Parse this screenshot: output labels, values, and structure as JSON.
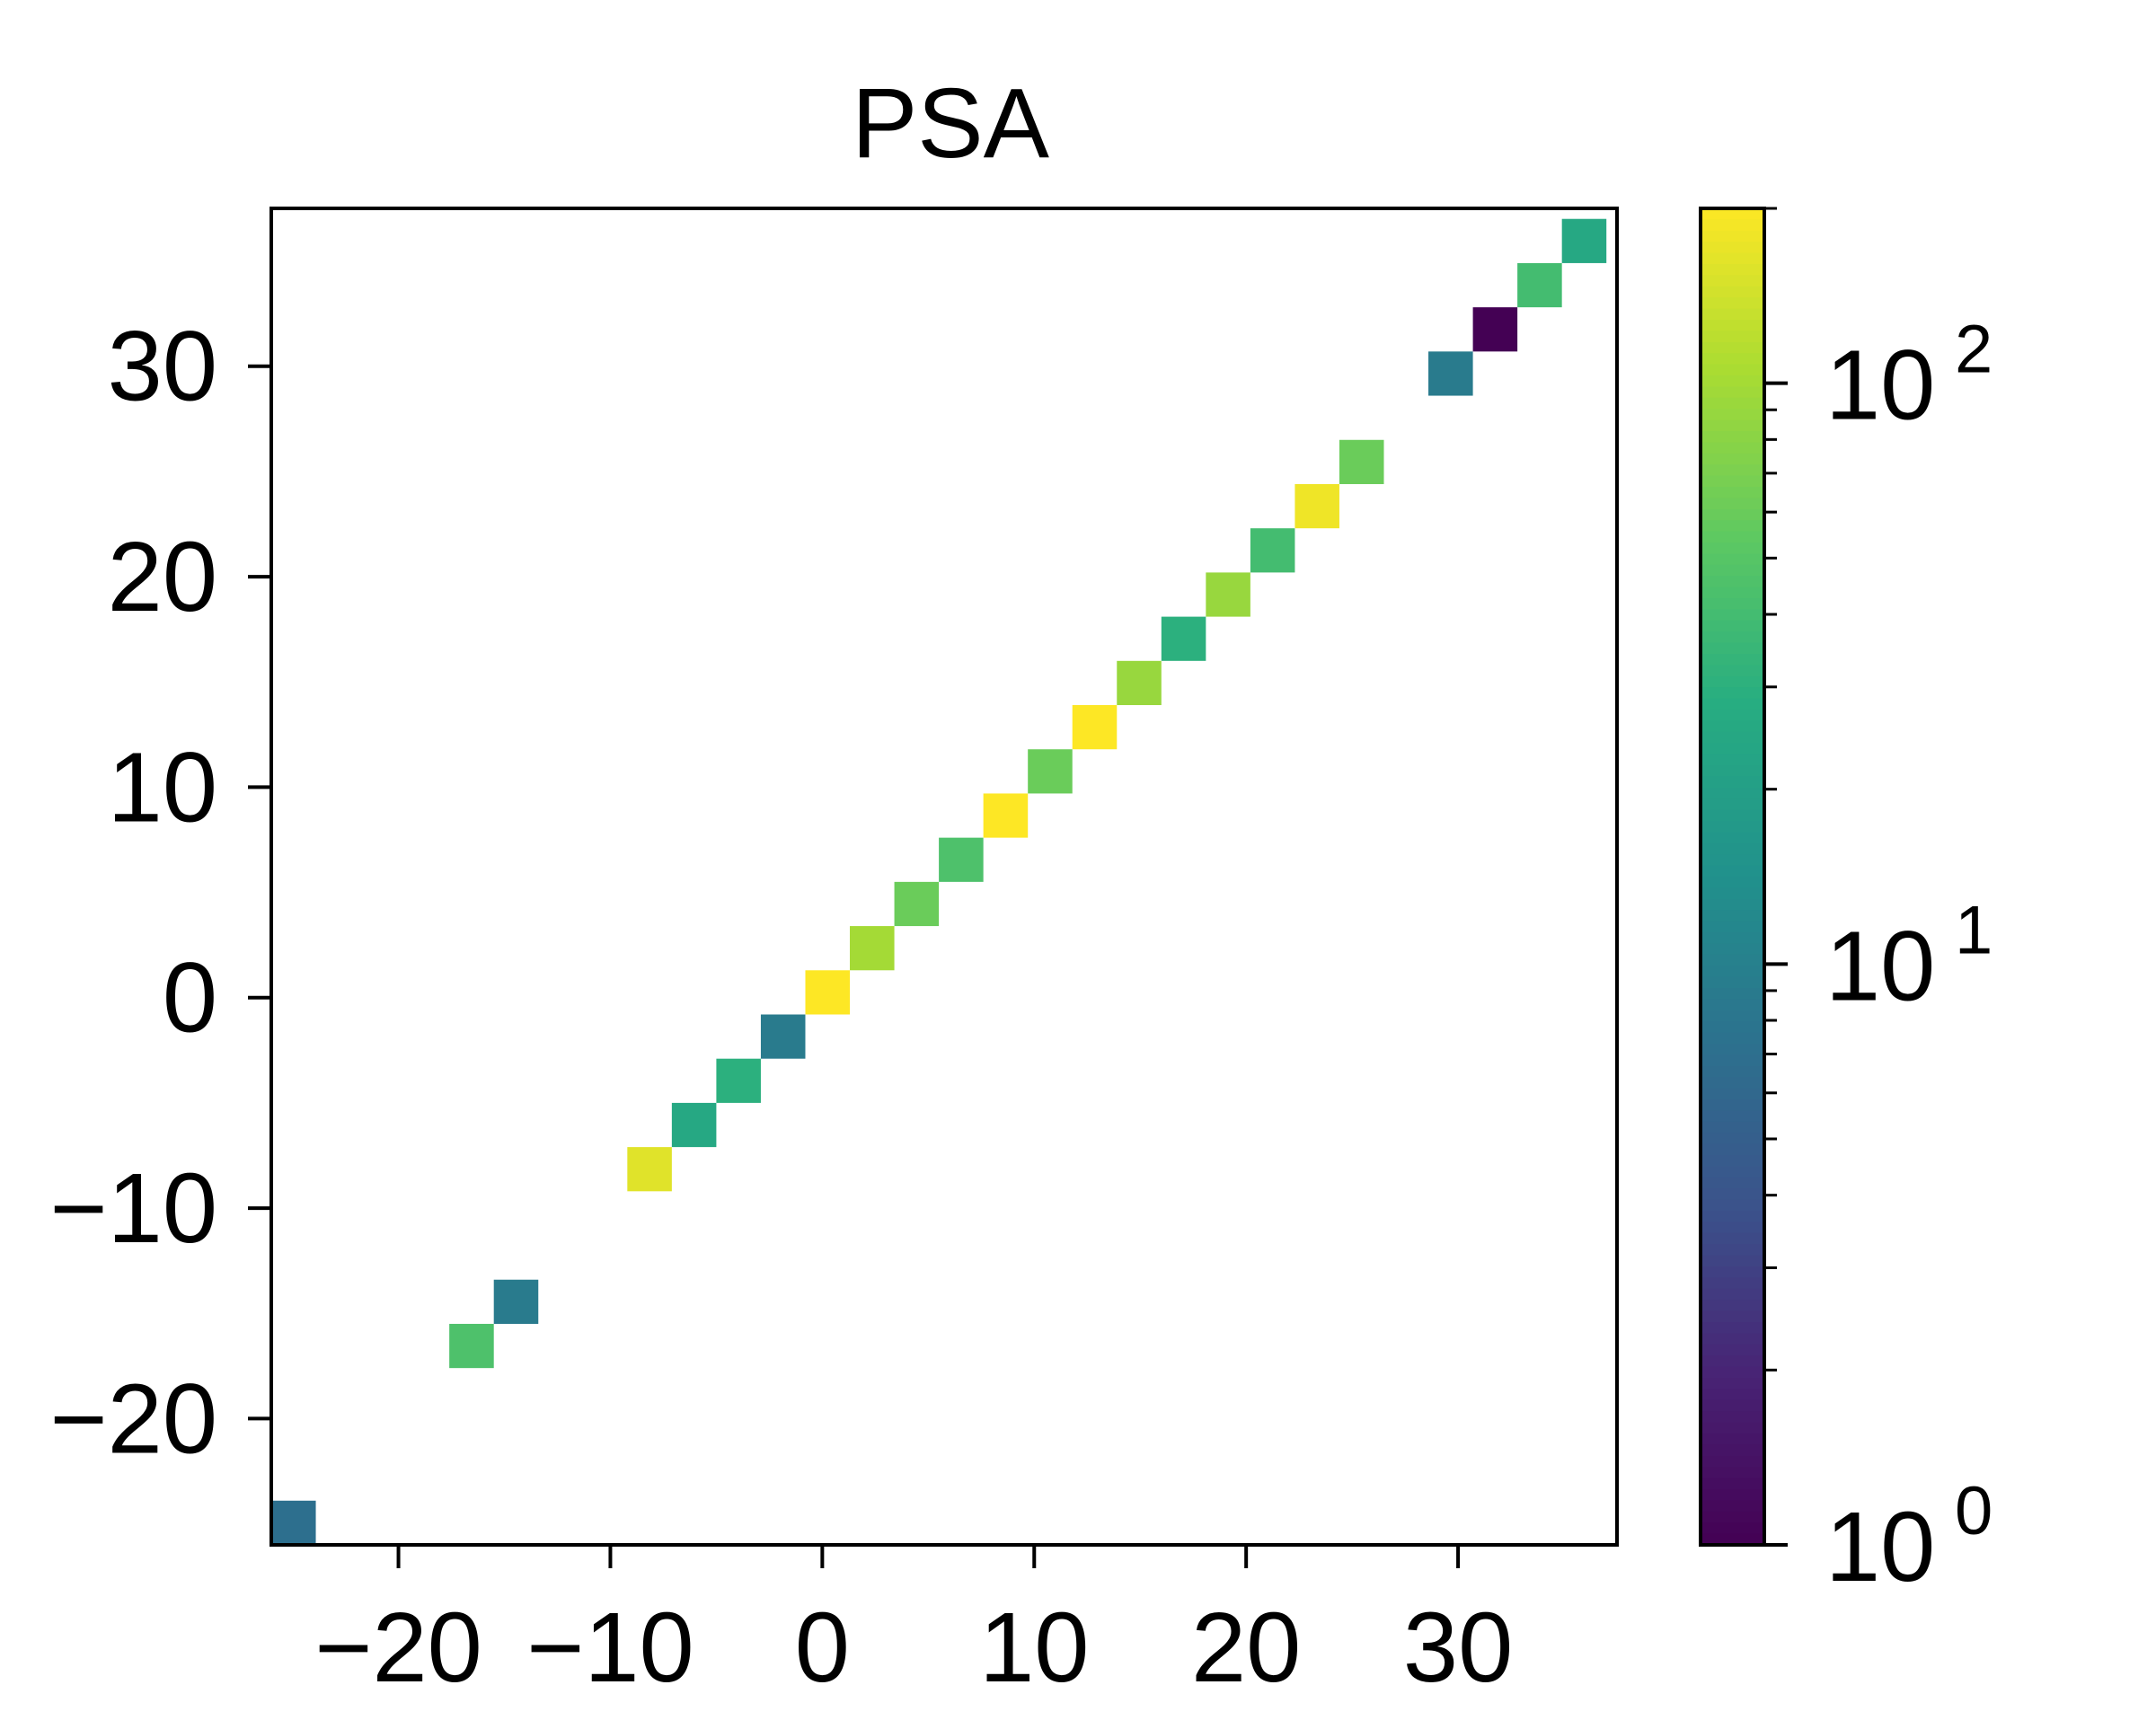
{
  "chart_data": {
    "type": "heatmap",
    "title": "PSA",
    "xlabel": "",
    "ylabel": "",
    "xlim": [
      -26,
      37.5
    ],
    "ylim": [
      -26,
      37.5
    ],
    "x_ticks": [
      -20,
      -10,
      0,
      10,
      20,
      30
    ],
    "y_ticks": [
      -20,
      -10,
      0,
      10,
      20,
      30
    ],
    "x_tick_labels": [
      "−20",
      "−10",
      "0",
      "10",
      "20",
      "30"
    ],
    "y_tick_labels": [
      "−20",
      "−10",
      "0",
      "10",
      "20",
      "30"
    ],
    "grid": false,
    "cell_size": 2.1,
    "cells": [
      {
        "x": -24.95,
        "y": -24.95,
        "value": 7
      },
      {
        "x": -16.55,
        "y": -16.55,
        "value": 45
      },
      {
        "x": -14.45,
        "y": -14.45,
        "value": 9
      },
      {
        "x": -8.15,
        "y": -8.15,
        "value": 160
      },
      {
        "x": -6.05,
        "y": -6.05,
        "value": 25
      },
      {
        "x": -3.95,
        "y": -3.95,
        "value": 30
      },
      {
        "x": -1.85,
        "y": -1.85,
        "value": 9
      },
      {
        "x": 0.25,
        "y": 0.25,
        "value": 200
      },
      {
        "x": 2.35,
        "y": 2.35,
        "value": 100
      },
      {
        "x": 4.45,
        "y": 4.45,
        "value": 60
      },
      {
        "x": 6.55,
        "y": 6.55,
        "value": 45
      },
      {
        "x": 8.65,
        "y": 8.65,
        "value": 200
      },
      {
        "x": 10.75,
        "y": 10.75,
        "value": 60
      },
      {
        "x": 12.85,
        "y": 12.85,
        "value": 200
      },
      {
        "x": 14.95,
        "y": 14.95,
        "value": 90
      },
      {
        "x": 17.05,
        "y": 17.05,
        "value": 30
      },
      {
        "x": 19.15,
        "y": 19.15,
        "value": 90
      },
      {
        "x": 21.25,
        "y": 21.25,
        "value": 40
      },
      {
        "x": 23.35,
        "y": 23.35,
        "value": 180
      },
      {
        "x": 25.45,
        "y": 25.45,
        "value": 60
      },
      {
        "x": 29.65,
        "y": 29.65,
        "value": 9
      },
      {
        "x": 31.75,
        "y": 31.75,
        "value": 1
      },
      {
        "x": 33.85,
        "y": 33.85,
        "value": 40
      },
      {
        "x": 35.95,
        "y": 35.95,
        "value": 25
      }
    ],
    "colorbar": {
      "scale": "log",
      "colormap": "viridis",
      "range": [
        1,
        200
      ],
      "major_ticks": [
        1,
        10,
        100
      ],
      "major_tick_labels": [
        {
          "base": "10",
          "exp": "0"
        },
        {
          "base": "10",
          "exp": "1"
        },
        {
          "base": "10",
          "exp": "2"
        }
      ],
      "minor_ticks": [
        2,
        3,
        4,
        5,
        6,
        7,
        8,
        9,
        20,
        30,
        40,
        50,
        60,
        70,
        80,
        90,
        200
      ]
    }
  }
}
